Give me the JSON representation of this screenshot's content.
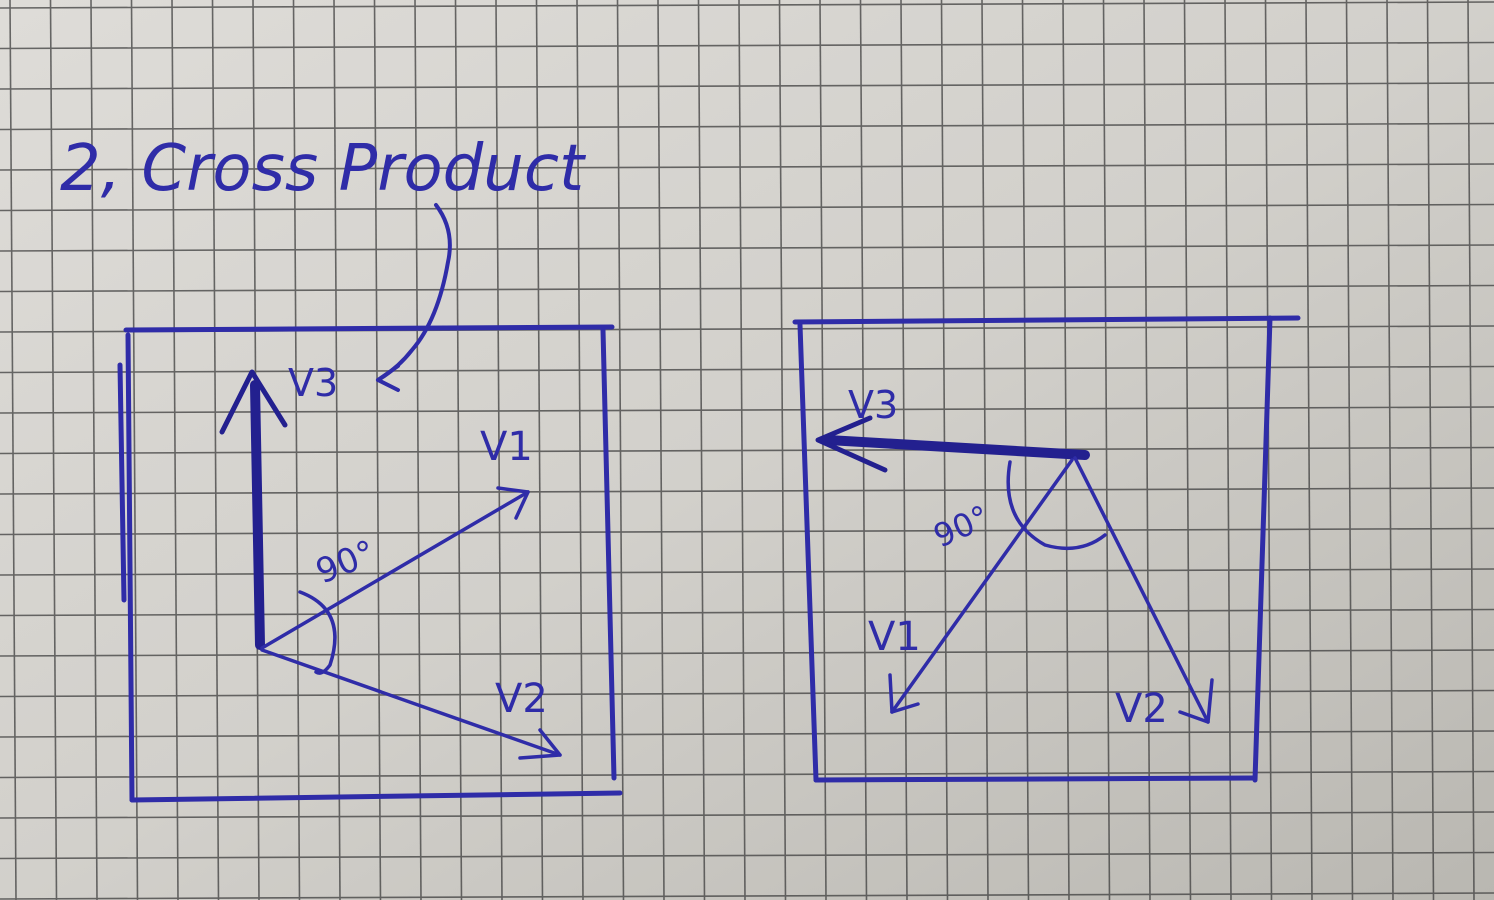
{
  "title": "2, Cross Product",
  "ink_color": "#2f2ca8",
  "paper_color": "#cfcdc8",
  "grid_color": "#3a3a3a",
  "left_diagram": {
    "v3_label": "V3",
    "v1_label": "V1",
    "v2_label": "V2",
    "angle_label": "90°"
  },
  "right_diagram": {
    "v3_label": "V3",
    "v1_label": "V1",
    "v2_label": "V2",
    "angle_label": "90°"
  }
}
